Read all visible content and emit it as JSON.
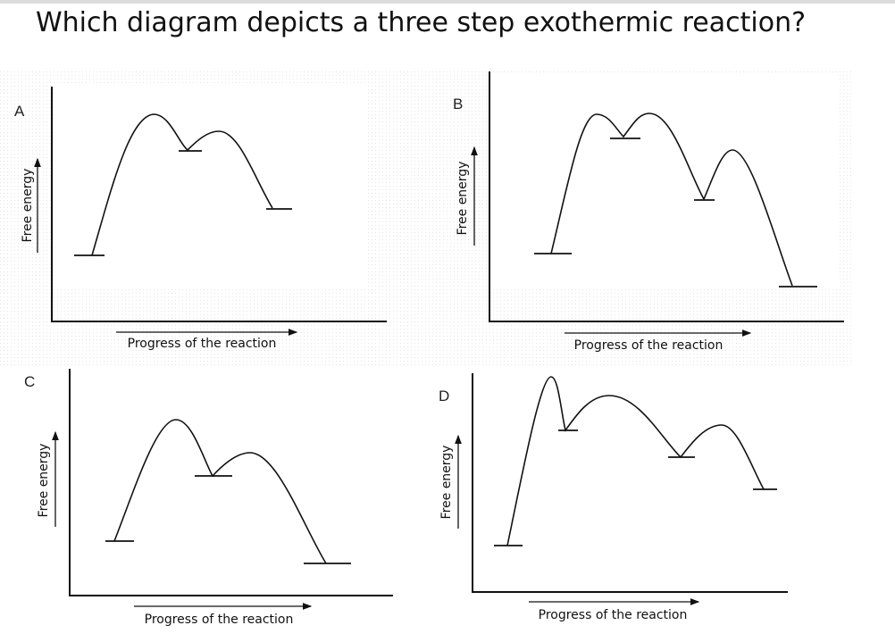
{
  "question": "Which diagram depicts a three step exothermic reaction?",
  "diagrams": [
    {
      "label": "A",
      "y_axis_label": "Free energy",
      "x_axis_label": "Progress of the reaction"
    },
    {
      "label": "B",
      "y_axis_label": "Free energy",
      "x_axis_label": "Progress of the reaction"
    },
    {
      "label": "C",
      "y_axis_label": "Free energy",
      "x_axis_label": "Progress of the reaction"
    },
    {
      "label": "D",
      "y_axis_label": "Free energy",
      "x_axis_label": "Progress of the reaction"
    }
  ]
}
